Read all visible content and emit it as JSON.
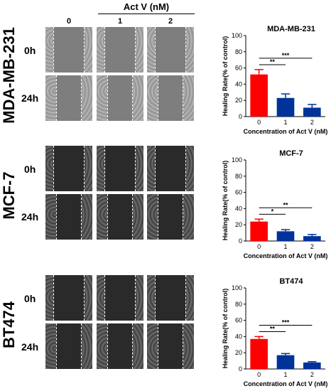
{
  "header": {
    "treatment": "Act V (nM)",
    "doses": [
      "0",
      "1",
      "2"
    ]
  },
  "cell_lines": [
    {
      "name": "MDA-MB-231",
      "times": [
        "0h",
        "24h"
      ]
    },
    {
      "name": "MCF-7",
      "times": [
        "0h",
        "24h"
      ]
    },
    {
      "name": "BT474",
      "times": [
        "0h",
        "24h"
      ]
    }
  ],
  "colors": {
    "control": "#ff0000",
    "treated": "#003399",
    "micrograph_light": "#9a9a9a",
    "micrograph_dark": "#3a3a3a"
  },
  "chart_data": [
    {
      "type": "bar",
      "title": "MDA-MB-231",
      "categories": [
        "0",
        "1",
        "2"
      ],
      "values": [
        52,
        23,
        11
      ],
      "errors": [
        6,
        5,
        4
      ],
      "xlabel": "Concentration of Act V (nM)",
      "ylabel": "Healing Rate(% of control)",
      "ylim": [
        0,
        100
      ],
      "yticks": [
        0,
        20,
        40,
        60,
        80,
        100
      ],
      "significance": [
        {
          "from": "0",
          "to": "1",
          "label": "**"
        },
        {
          "from": "0",
          "to": "2",
          "label": "***"
        }
      ]
    },
    {
      "type": "bar",
      "title": "MCF-7",
      "categories": [
        "0",
        "1",
        "2"
      ],
      "values": [
        24,
        12,
        6
      ],
      "errors": [
        3,
        2,
        2
      ],
      "xlabel": "Concentration of Act V (nM)",
      "ylabel": "Healing Rate(% of control)",
      "ylim": [
        0,
        100
      ],
      "yticks": [
        0,
        20,
        40,
        60,
        80,
        100
      ],
      "significance": [
        {
          "from": "0",
          "to": "1",
          "label": "*"
        },
        {
          "from": "0",
          "to": "2",
          "label": "**"
        }
      ]
    },
    {
      "type": "bar",
      "title": "BT474",
      "categories": [
        "0",
        "1",
        "2"
      ],
      "values": [
        37,
        17,
        8
      ],
      "errors": [
        3,
        2,
        1
      ],
      "xlabel": "Concentration of Act V (nM)",
      "ylabel": "Healing Rate(% of control)",
      "ylim": [
        0,
        100
      ],
      "yticks": [
        0,
        20,
        40,
        60,
        80,
        100
      ],
      "significance": [
        {
          "from": "0",
          "to": "1",
          "label": "**"
        },
        {
          "from": "0",
          "to": "2",
          "label": "***"
        }
      ]
    }
  ]
}
